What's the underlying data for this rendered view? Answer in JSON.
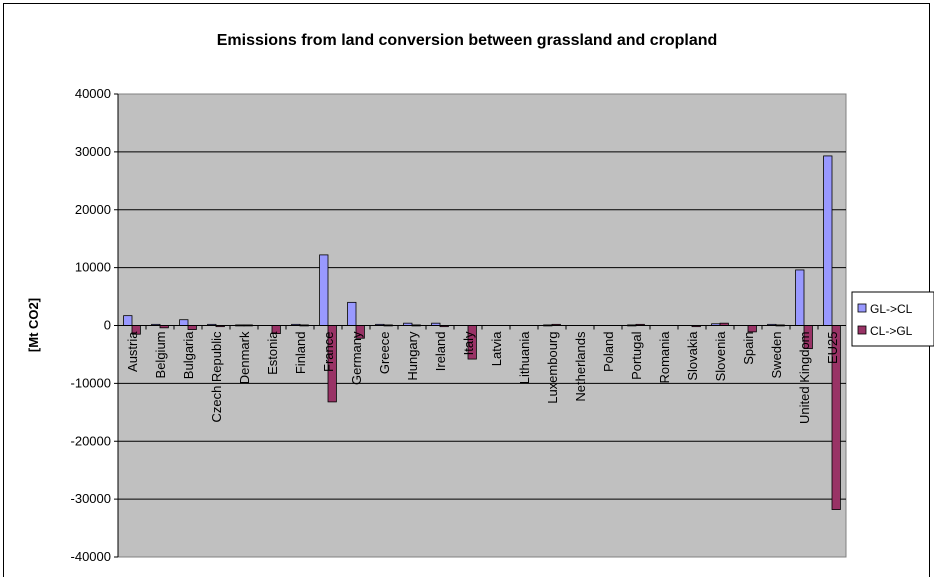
{
  "chart_data": {
    "type": "bar",
    "title": "Emissions from land conversion between grassland and cropland",
    "ylabel": "[Mt CO2]",
    "xlabel": "",
    "ylim": [
      -40000,
      40000
    ],
    "yticks": [
      40000,
      30000,
      20000,
      10000,
      0,
      -10000,
      -20000,
      -30000,
      -40000
    ],
    "grid": true,
    "legend_position": "right",
    "categories": [
      "Austria",
      "Belgium",
      "Bulgaria",
      "Czech Republic",
      "Denmark",
      "Estonia",
      "Finland",
      "France",
      "Germany",
      "Greece",
      "Hungary",
      "Ireland",
      "Italy",
      "Latvia",
      "Lithuania",
      "Luxembourg",
      "Netherlands",
      "Poland",
      "Portugal",
      "Romania",
      "Slovakia",
      "Slovenia",
      "Spain",
      "Sweden",
      "United Kingdom",
      "EU25"
    ],
    "series": [
      {
        "name": "GL->CL",
        "color": "#9999ff",
        "values": [
          1700,
          200,
          1000,
          200,
          100,
          0,
          200,
          12200,
          4000,
          200,
          400,
          400,
          0,
          0,
          0,
          100,
          0,
          0,
          100,
          0,
          0,
          300,
          0,
          200,
          9600,
          29300
        ]
      },
      {
        "name": "CL->GL",
        "color": "#993366",
        "values": [
          -1500,
          -400,
          -700,
          -200,
          100,
          -1400,
          100,
          -13200,
          -2200,
          100,
          100,
          -200,
          -5800,
          0,
          0,
          200,
          0,
          0,
          200,
          0,
          -200,
          400,
          -1100,
          100,
          -4000,
          -31800
        ]
      }
    ],
    "plot_background": "#c0c0c0"
  }
}
